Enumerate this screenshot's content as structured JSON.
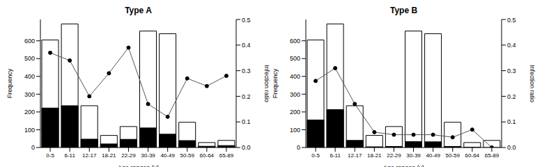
{
  "chart_data": [
    {
      "type": "bar",
      "title": "Type A",
      "xlabel": "Age ranges (y)",
      "ylabel": "Frequency",
      "y2label": "Infection ratio",
      "categories": [
        "0-5",
        "6-11",
        "12-17",
        "18-21",
        "22-29",
        "30-39",
        "40-49",
        "50-59",
        "60-64",
        "65-89"
      ],
      "series": [
        {
          "type": "bar",
          "color": "#ffffff",
          "values": [
            605,
            695,
            235,
            68,
            118,
            655,
            640,
            142,
            28,
            40
          ]
        },
        {
          "type": "bar",
          "color": "#000000",
          "values": [
            222,
            235,
            47,
            20,
            46,
            110,
            75,
            39,
            7,
            11
          ]
        },
        {
          "type": "line",
          "axis": "y2",
          "color": "#000000",
          "marker": "circle",
          "values": [
            0.37,
            0.34,
            0.2,
            0.29,
            0.39,
            0.17,
            0.12,
            0.27,
            0.24,
            0.28
          ]
        }
      ],
      "ylim": [
        0,
        720
      ],
      "yticks": [
        0,
        100,
        200,
        300,
        400,
        500,
        600
      ],
      "y2lim": [
        0,
        0.5
      ],
      "y2ticks": [
        {
          "value": 0,
          "label": "0.0"
        },
        0.1,
        0.2,
        0.3,
        0.4,
        0.5
      ]
    },
    {
      "type": "bar",
      "title": "Type B",
      "xlabel": "Age ranges (y)",
      "ylabel": "Frequency",
      "y2label": "Infection ratio",
      "categories": [
        "0-5",
        "6-11",
        "12-17",
        "18-21",
        "22-29",
        "30-39",
        "40-49",
        "50-59",
        "60-64",
        "65-89"
      ],
      "series": [
        {
          "type": "bar",
          "color": "#ffffff",
          "values": [
            605,
            695,
            235,
            68,
            118,
            655,
            640,
            142,
            28,
            40
          ]
        },
        {
          "type": "bar",
          "color": "#000000",
          "values": [
            155,
            213,
            40,
            4,
            6,
            33,
            32,
            6,
            2,
            0
          ]
        },
        {
          "type": "line",
          "axis": "y2",
          "color": "#000000",
          "marker": "circle",
          "values": [
            0.26,
            0.31,
            0.17,
            0.06,
            0.05,
            0.05,
            0.05,
            0.04,
            0.07,
            0.0
          ]
        }
      ],
      "ylim": [
        0,
        720
      ],
      "yticks": [
        0,
        100,
        200,
        300,
        400,
        500,
        600
      ],
      "y2lim": [
        0,
        0.5
      ],
      "y2ticks": [
        {
          "value": 0,
          "label": "0.0"
        },
        0.1,
        0.2,
        0.3,
        0.4,
        0.5
      ]
    }
  ]
}
